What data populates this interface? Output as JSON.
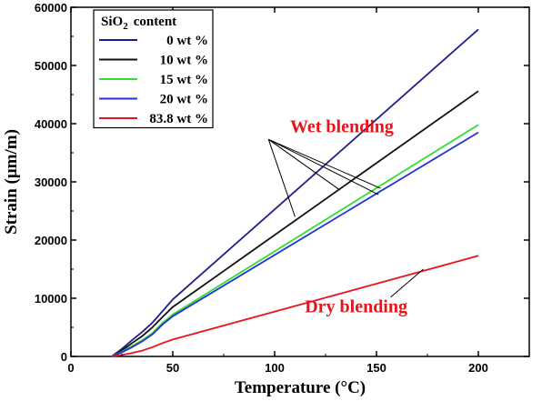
{
  "chart_data": {
    "type": "line",
    "xlabel": "Temperature (°C)",
    "ylabel": "Strain (μm/m)",
    "xlim": [
      0,
      225
    ],
    "ylim": [
      0,
      60000
    ],
    "xticks": [
      0,
      50,
      100,
      150,
      200
    ],
    "yticks": [
      0,
      10000,
      20000,
      30000,
      40000,
      50000,
      60000
    ],
    "x_tick_labels": [
      "0",
      "50",
      "100",
      "150",
      "200"
    ],
    "y_tick_labels": [
      "0",
      "10000",
      "20000",
      "30000",
      "40000",
      "50000",
      "60000"
    ],
    "grid": false,
    "legend": {
      "placement": "top-left",
      "title_main": "SiO",
      "title_sub": "2",
      "title_rest": "content"
    },
    "series": [
      {
        "name": "0 wt %",
        "color": "#1f1f8c",
        "x": [
          20,
          25,
          30,
          35,
          40,
          45,
          50,
          200
        ],
        "y": [
          0,
          1300,
          2800,
          4200,
          5800,
          7800,
          9800,
          56200
        ]
      },
      {
        "name": "10 wt %",
        "color": "#111111",
        "x": [
          20,
          25,
          30,
          35,
          40,
          45,
          50,
          200
        ],
        "y": [
          0,
          1000,
          2300,
          3500,
          5000,
          6800,
          8500,
          45600
        ]
      },
      {
        "name": "15 wt %",
        "color": "#33dd33",
        "x": [
          20,
          25,
          30,
          35,
          40,
          45,
          50,
          200
        ],
        "y": [
          0,
          800,
          1800,
          2800,
          4000,
          5800,
          7200,
          39800
        ]
      },
      {
        "name": "20 wt %",
        "color": "#2233dd",
        "x": [
          20,
          25,
          30,
          35,
          40,
          45,
          50,
          200
        ],
        "y": [
          0,
          700,
          1600,
          2600,
          3800,
          5500,
          6900,
          38500
        ]
      },
      {
        "name": "83.8 wt %",
        "color": "#e8141a",
        "x": [
          20,
          25,
          30,
          35,
          40,
          45,
          50,
          200
        ],
        "y": [
          0,
          250,
          600,
          1000,
          1600,
          2300,
          2900,
          17300
        ]
      }
    ],
    "annotations": [
      {
        "text": "Wet blending",
        "x": 133,
        "y": 38500,
        "color": "#e8141a",
        "arrow_from": [
          97,
          37300
        ],
        "arrow_targets": [
          [
            110,
            24000
          ],
          [
            132,
            28600
          ],
          [
            152,
            28900
          ],
          [
            151,
            27800
          ]
        ]
      },
      {
        "text": "Dry blending",
        "x": 140,
        "y": 7600,
        "color": "#e8141a",
        "arrow_from": [
          157,
          10200
        ],
        "arrow_targets": [
          [
            173,
            15000
          ]
        ]
      }
    ]
  }
}
